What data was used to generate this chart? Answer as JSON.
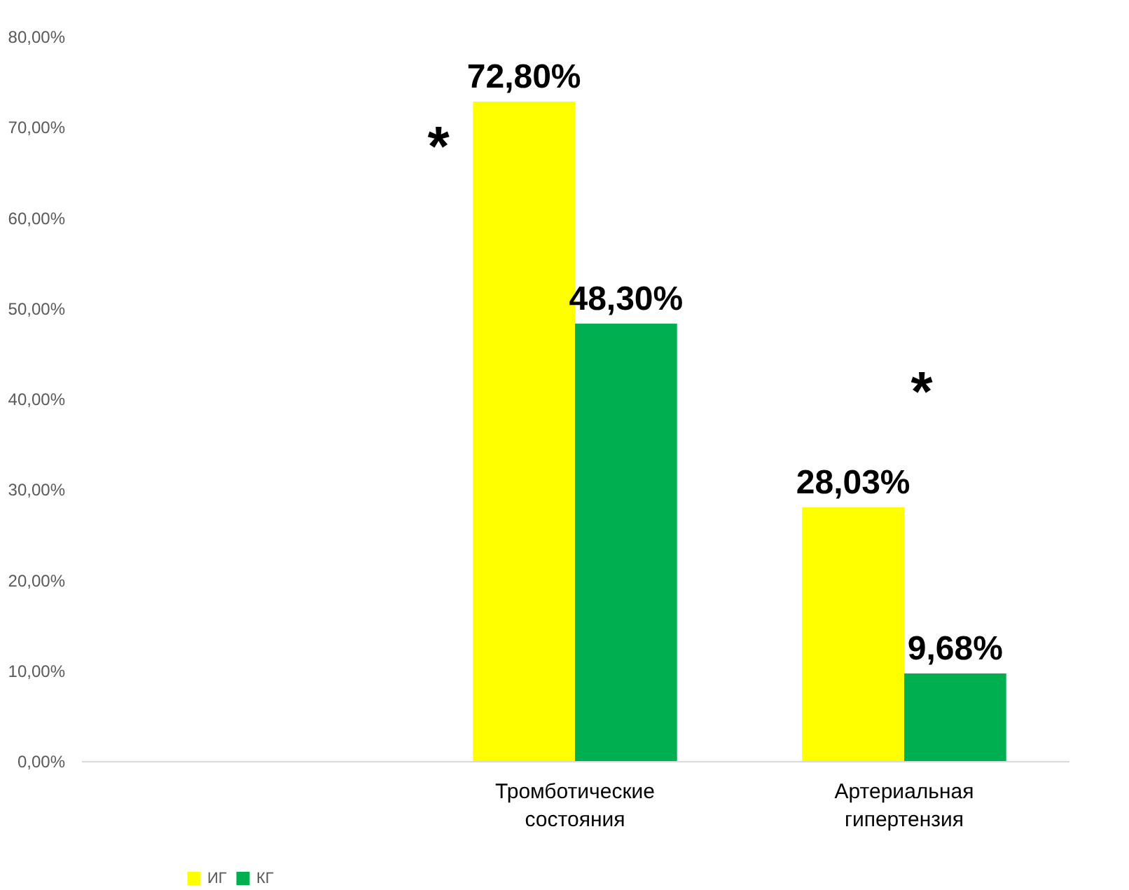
{
  "chart_data": {
    "type": "bar",
    "categories": [
      null,
      "Тромботические состояния",
      "Артериальная гипертензия"
    ],
    "series": [
      {
        "name": "ИГ",
        "color": "#ffff00",
        "values": [
          null,
          72.8,
          28.03
        ],
        "value_labels": [
          null,
          "72,80%",
          "28,03%"
        ]
      },
      {
        "name": "КГ",
        "color": "#00b050",
        "values": [
          null,
          48.3,
          9.68
        ],
        "value_labels": [
          null,
          "48,30%",
          "9,68%"
        ]
      }
    ],
    "ylim": [
      0,
      80
    ],
    "yticks": [
      {
        "value": 0,
        "label": "0,00%"
      },
      {
        "value": 10,
        "label": "10,00%"
      },
      {
        "value": 20,
        "label": "20,00%"
      },
      {
        "value": 30,
        "label": "30,00%"
      },
      {
        "value": 40,
        "label": "40,00%"
      },
      {
        "value": 50,
        "label": "50,00%"
      },
      {
        "value": 60,
        "label": "60,00%"
      },
      {
        "value": 70,
        "label": "70,00%"
      },
      {
        "value": 80,
        "label": "80,00%"
      }
    ],
    "annotations": [
      "*",
      "*"
    ],
    "grid": false,
    "legend": "bottom left"
  }
}
